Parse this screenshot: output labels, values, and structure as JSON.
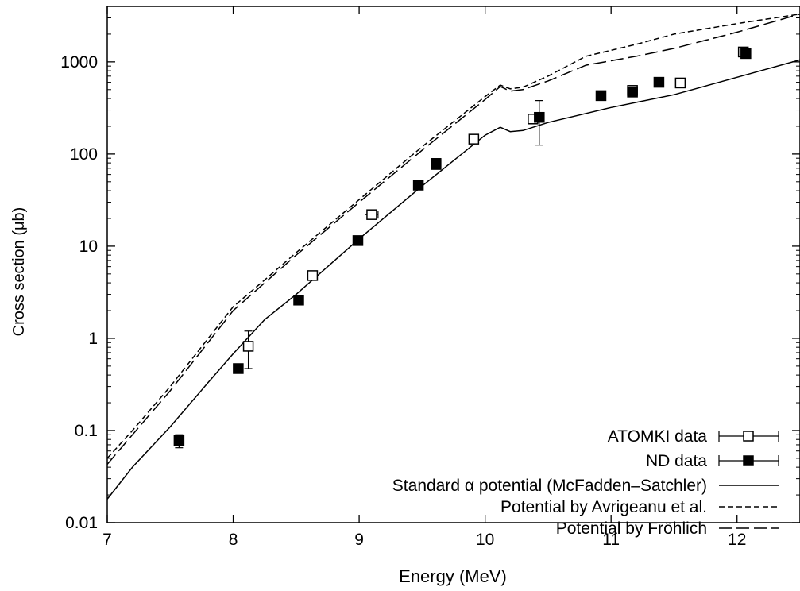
{
  "chart_data": {
    "type": "scatter",
    "title": "",
    "xlabel": "Energy (MeV)",
    "ylabel": "Cross section (μb)",
    "xlim": [
      7,
      12.5
    ],
    "ylim": [
      0.01,
      4000
    ],
    "yscale": "log",
    "grid": false,
    "legend_position": "bottom-right",
    "x_ticks": [
      7,
      8,
      9,
      10,
      11,
      12
    ],
    "x_tick_labels": [
      "7",
      "8",
      "9",
      "10",
      "11",
      "12"
    ],
    "y_ticks": [
      0.01,
      0.1,
      1,
      10,
      100,
      1000
    ],
    "y_tick_labels": [
      "0.01",
      "0.1",
      "1",
      "10",
      "100",
      "1000"
    ],
    "series": [
      {
        "name": "ATOMKI data",
        "kind": "points",
        "marker": "open-square",
        "points": [
          {
            "x": 8.12,
            "y": 0.82,
            "ylo": 0.47,
            "yhi": 1.2
          },
          {
            "x": 8.63,
            "y": 4.8
          },
          {
            "x": 9.1,
            "y": 22,
            "xerr": 0.05
          },
          {
            "x": 9.61,
            "y": 79
          },
          {
            "x": 9.91,
            "y": 145
          },
          {
            "x": 10.38,
            "y": 240
          },
          {
            "x": 11.17,
            "y": 490
          },
          {
            "x": 11.55,
            "y": 590
          },
          {
            "x": 12.05,
            "y": 1280
          }
        ]
      },
      {
        "name": "ND data",
        "kind": "points",
        "marker": "filled-square",
        "points": [
          {
            "x": 7.57,
            "y": 0.078,
            "ylo": 0.065,
            "yhi": 0.09
          },
          {
            "x": 8.04,
            "y": 0.47
          },
          {
            "x": 8.52,
            "y": 2.6
          },
          {
            "x": 8.99,
            "y": 11.5
          },
          {
            "x": 9.47,
            "y": 46
          },
          {
            "x": 9.61,
            "y": 77
          },
          {
            "x": 10.43,
            "y": 250,
            "ylo": 125,
            "yhi": 380
          },
          {
            "x": 10.92,
            "y": 430
          },
          {
            "x": 11.17,
            "y": 470
          },
          {
            "x": 11.38,
            "y": 600
          },
          {
            "x": 12.07,
            "y": 1230
          }
        ]
      },
      {
        "name": "Standard α potential (McFadden–Satchler)",
        "kind": "line",
        "dash": "solid",
        "points": [
          {
            "x": 7.0,
            "y": 0.018
          },
          {
            "x": 7.2,
            "y": 0.04
          },
          {
            "x": 7.5,
            "y": 0.11
          },
          {
            "x": 7.8,
            "y": 0.33
          },
          {
            "x": 8.0,
            "y": 0.68
          },
          {
            "x": 8.25,
            "y": 1.6
          },
          {
            "x": 8.5,
            "y": 3.0
          },
          {
            "x": 9.0,
            "y": 12
          },
          {
            "x": 9.5,
            "y": 45
          },
          {
            "x": 10.0,
            "y": 160
          },
          {
            "x": 10.12,
            "y": 195
          },
          {
            "x": 10.2,
            "y": 175
          },
          {
            "x": 10.3,
            "y": 180
          },
          {
            "x": 10.5,
            "y": 220
          },
          {
            "x": 11.0,
            "y": 320
          },
          {
            "x": 11.5,
            "y": 440
          },
          {
            "x": 12.0,
            "y": 680
          },
          {
            "x": 12.5,
            "y": 1050
          }
        ]
      },
      {
        "name": "Potential by Avrigeanu et al.",
        "kind": "line",
        "dash": "dashed",
        "points": [
          {
            "x": 7.0,
            "y": 0.05
          },
          {
            "x": 7.2,
            "y": 0.1
          },
          {
            "x": 7.5,
            "y": 0.3
          },
          {
            "x": 8.0,
            "y": 2.2
          },
          {
            "x": 8.25,
            "y": 4.3
          },
          {
            "x": 8.5,
            "y": 8.5
          },
          {
            "x": 9.0,
            "y": 32
          },
          {
            "x": 9.5,
            "y": 120
          },
          {
            "x": 10.0,
            "y": 420
          },
          {
            "x": 10.12,
            "y": 560
          },
          {
            "x": 10.2,
            "y": 510
          },
          {
            "x": 10.3,
            "y": 530
          },
          {
            "x": 10.5,
            "y": 700
          },
          {
            "x": 10.8,
            "y": 1150
          },
          {
            "x": 11.2,
            "y": 1550
          },
          {
            "x": 11.5,
            "y": 2000
          },
          {
            "x": 12.0,
            "y": 2600
          },
          {
            "x": 12.5,
            "y": 3300
          }
        ]
      },
      {
        "name": "Potential by Fröhlich",
        "kind": "line",
        "dash": "long-dashed",
        "points": [
          {
            "x": 7.0,
            "y": 0.043
          },
          {
            "x": 7.2,
            "y": 0.09
          },
          {
            "x": 7.5,
            "y": 0.27
          },
          {
            "x": 8.0,
            "y": 2.0
          },
          {
            "x": 8.25,
            "y": 4.0
          },
          {
            "x": 8.5,
            "y": 8.0
          },
          {
            "x": 9.0,
            "y": 30
          },
          {
            "x": 9.5,
            "y": 110
          },
          {
            "x": 10.0,
            "y": 390
          },
          {
            "x": 10.12,
            "y": 540
          },
          {
            "x": 10.2,
            "y": 480
          },
          {
            "x": 10.3,
            "y": 500
          },
          {
            "x": 10.5,
            "y": 620
          },
          {
            "x": 10.8,
            "y": 920
          },
          {
            "x": 11.2,
            "y": 1150
          },
          {
            "x": 11.5,
            "y": 1400
          },
          {
            "x": 12.0,
            "y": 2100
          },
          {
            "x": 12.5,
            "y": 3300
          }
        ]
      }
    ]
  }
}
